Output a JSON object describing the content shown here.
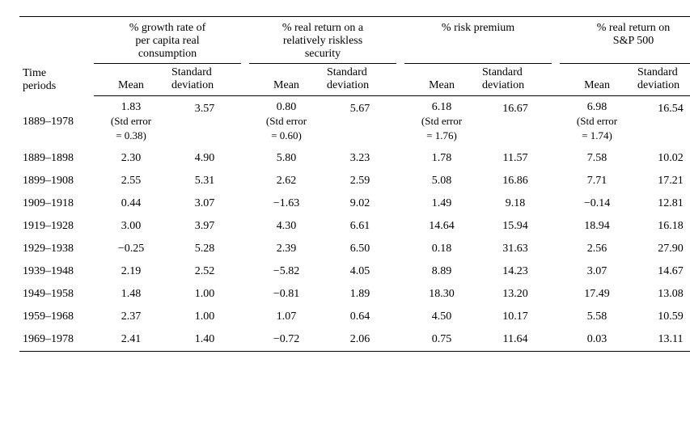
{
  "table": {
    "time_label": "Time\nperiods",
    "group_headers": [
      "% growth rate of\nper capita real\nconsumption",
      "% real return on a\nrelatively riskless\nsecurity",
      "% risk premium",
      "% real return on\nS&P 500"
    ],
    "sub_headers": {
      "mean": "Mean",
      "std": "Standard\ndeviation"
    },
    "stderr_label_prefix": "(Std error",
    "stderr_label_eq": "= ",
    "stderr_label_suffix": ")",
    "first_row": {
      "period": "1889–1978",
      "values": [
        {
          "mean": "1.83",
          "stderr": "0.38",
          "std": "3.57"
        },
        {
          "mean": "0.80",
          "stderr": "0.60",
          "std": "5.67"
        },
        {
          "mean": "6.18",
          "stderr": "1.76",
          "std": "16.67"
        },
        {
          "mean": "6.98",
          "stderr": "1.74",
          "std": "16.54"
        }
      ]
    },
    "rows": [
      {
        "period": "1889–1898",
        "cells": [
          "2.30",
          "4.90",
          "5.80",
          "3.23",
          "1.78",
          "11.57",
          "7.58",
          "10.02"
        ]
      },
      {
        "period": "1899–1908",
        "cells": [
          "2.55",
          "5.31",
          "2.62",
          "2.59",
          "5.08",
          "16.86",
          "7.71",
          "17.21"
        ]
      },
      {
        "period": "1909–1918",
        "cells": [
          "0.44",
          "3.07",
          "−1.63",
          "9.02",
          "1.49",
          "9.18",
          "−0.14",
          "12.81"
        ]
      },
      {
        "period": "1919–1928",
        "cells": [
          "3.00",
          "3.97",
          "4.30",
          "6.61",
          "14.64",
          "15.94",
          "18.94",
          "16.18"
        ]
      },
      {
        "period": "1929–1938",
        "cells": [
          "−0.25",
          "5.28",
          "2.39",
          "6.50",
          "0.18",
          "31.63",
          "2.56",
          "27.90"
        ]
      },
      {
        "period": "1939–1948",
        "cells": [
          "2.19",
          "2.52",
          "−5.82",
          "4.05",
          "8.89",
          "14.23",
          "3.07",
          "14.67"
        ]
      },
      {
        "period": "1949–1958",
        "cells": [
          "1.48",
          "1.00",
          "−0.81",
          "1.89",
          "18.30",
          "13.20",
          "17.49",
          "13.08"
        ]
      },
      {
        "period": "1959–1968",
        "cells": [
          "2.37",
          "1.00",
          "1.07",
          "0.64",
          "4.50",
          "10.17",
          "5.58",
          "10.59"
        ]
      },
      {
        "period": "1969–1978",
        "cells": [
          "2.41",
          "1.40",
          "−0.72",
          "2.06",
          "0.75",
          "11.64",
          "0.03",
          "13.11"
        ]
      }
    ],
    "styling": {
      "font_family": "Times New Roman serif",
      "body_fontsize_pt": 11,
      "rule_color": "#000000",
      "background_color": "#ffffff",
      "text_color": "#000000",
      "minus_sign": "U+2212"
    }
  }
}
